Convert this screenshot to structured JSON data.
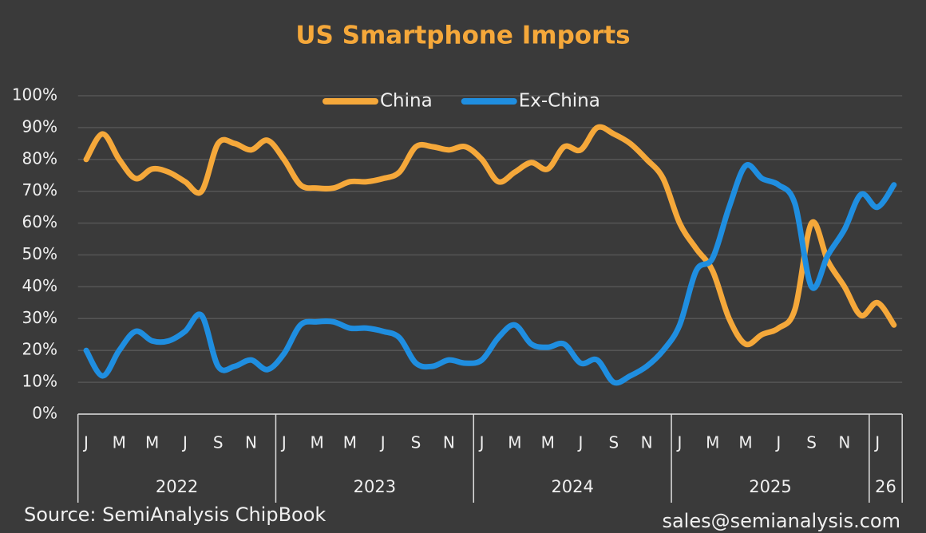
{
  "chart_data": {
    "type": "line",
    "title": "US Smartphone Imports",
    "categories": [
      "J",
      null,
      "M",
      null,
      "M",
      null,
      "J",
      null,
      "S",
      null,
      "N",
      null,
      "J",
      null,
      "M",
      null,
      "M",
      null,
      "J",
      null,
      "S",
      null,
      "N",
      null,
      "J",
      null,
      "M",
      null,
      "M",
      null,
      "J",
      null,
      "S",
      null,
      "N",
      null,
      "J",
      null,
      "M",
      null,
      "M",
      null,
      "J",
      null,
      "S",
      null,
      "N",
      null,
      "J",
      null
    ],
    "year_groups": [
      "2022",
      "2023",
      "2024",
      "2025",
      "26"
    ],
    "series": [
      {
        "name": "China",
        "color": "#f5a83a",
        "values": [
          80,
          88,
          80,
          74,
          77,
          76,
          73,
          70,
          85,
          85,
          83,
          86,
          80,
          72,
          71,
          71,
          73,
          73,
          74,
          76,
          84,
          84,
          83,
          84,
          80,
          73,
          76,
          79,
          77,
          84,
          83,
          90,
          88,
          85,
          80,
          74,
          60,
          52,
          45,
          30,
          22,
          25,
          27,
          33,
          60,
          48,
          40,
          31,
          35,
          28
        ]
      },
      {
        "name": "Ex-China",
        "color": "#1f8ee0",
        "values": [
          20,
          12,
          20,
          26,
          23,
          23,
          26,
          31,
          15,
          15,
          17,
          14,
          19,
          28,
          29,
          29,
          27,
          27,
          26,
          24,
          16,
          15,
          17,
          16,
          17,
          24,
          28,
          22,
          21,
          22,
          16,
          17,
          10,
          12,
          15,
          20,
          28,
          45,
          49,
          65,
          78,
          74,
          72,
          66,
          40,
          50,
          58,
          69,
          65,
          72
        ]
      }
    ],
    "ylim": [
      0,
      100
    ],
    "yticks": [
      {
        "value": 0,
        "label": "0%"
      },
      {
        "value": 10,
        "label": "10%"
      },
      {
        "value": 20,
        "label": "20%"
      },
      {
        "value": 30,
        "label": "30%"
      },
      {
        "value": 40,
        "label": "40%"
      },
      {
        "value": 50,
        "label": "50%"
      },
      {
        "value": 60,
        "label": "60%"
      },
      {
        "value": 70,
        "label": "70%"
      },
      {
        "value": 80,
        "label": "80%"
      },
      {
        "value": 90,
        "label": "90%"
      },
      {
        "value": 100,
        "label": "100%"
      }
    ],
    "grid": true,
    "legend": "top",
    "source": "Source: SemiAnalysis ChipBook",
    "contact": "sales@semianalysis.com"
  }
}
